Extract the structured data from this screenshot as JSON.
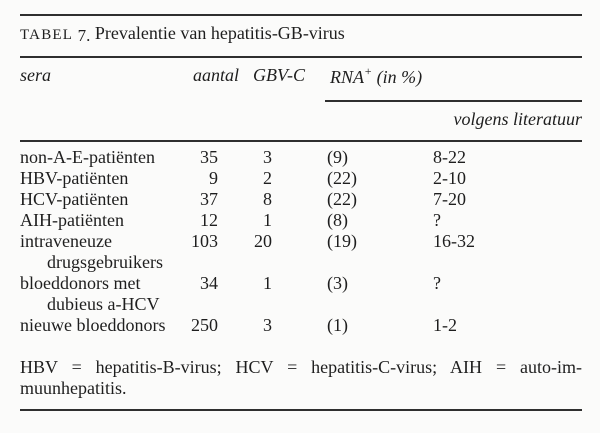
{
  "table": {
    "title": {
      "label_caps": "TABEL",
      "label_num": "7.",
      "text": "Prevalentie van hepatitis-GB-virus"
    },
    "columns": {
      "sera": "sera",
      "aantal": "aantal",
      "gbvc": "GBV-C",
      "rna_base": "RNA",
      "rna_sup": "+",
      "rna_paren": " (in %)"
    },
    "subheader": "volgens literatuur",
    "rows": [
      {
        "sera": "non-A-E-patiënten",
        "aantal": "35",
        "gbvc": "3",
        "pct": "(9)",
        "lit": "8-22",
        "indent": false
      },
      {
        "sera": "HBV-patiënten",
        "aantal": "9",
        "gbvc": "2",
        "pct": "(22)",
        "lit": "2-10",
        "indent": false
      },
      {
        "sera": "HCV-patiënten",
        "aantal": "37",
        "gbvc": "8",
        "pct": "(22)",
        "lit": "7-20",
        "indent": false
      },
      {
        "sera": "AIH-patiënten",
        "aantal": "12",
        "gbvc": "1",
        "pct": "(8)",
        "lit": "?",
        "indent": false
      },
      {
        "sera": "intraveneuze",
        "aantal": "103",
        "gbvc": "20",
        "pct": "(19)",
        "lit": "16-32",
        "indent": false
      },
      {
        "sera": "drugsgebruikers",
        "aantal": "",
        "gbvc": "",
        "pct": "",
        "lit": "",
        "indent": true
      },
      {
        "sera": "bloeddonors met",
        "aantal": "34",
        "gbvc": "1",
        "pct": "(3)",
        "lit": "?",
        "indent": false
      },
      {
        "sera": "dubieus a-HCV",
        "aantal": "",
        "gbvc": "",
        "pct": "",
        "lit": "",
        "indent": true
      },
      {
        "sera": "nieuwe bloeddonors",
        "aantal": "250",
        "gbvc": "3",
        "pct": "(1)",
        "lit": "1-2",
        "indent": false
      }
    ],
    "footnote": {
      "line1": "HBV = hepatitis-B-virus; HCV = hepatitis-C-virus; AIH = auto-im-",
      "line2": "muunhepatitis."
    }
  },
  "colors": {
    "background": "#fbfbfa",
    "text": "#1e1e1e",
    "rule": "#2f2f2f"
  }
}
